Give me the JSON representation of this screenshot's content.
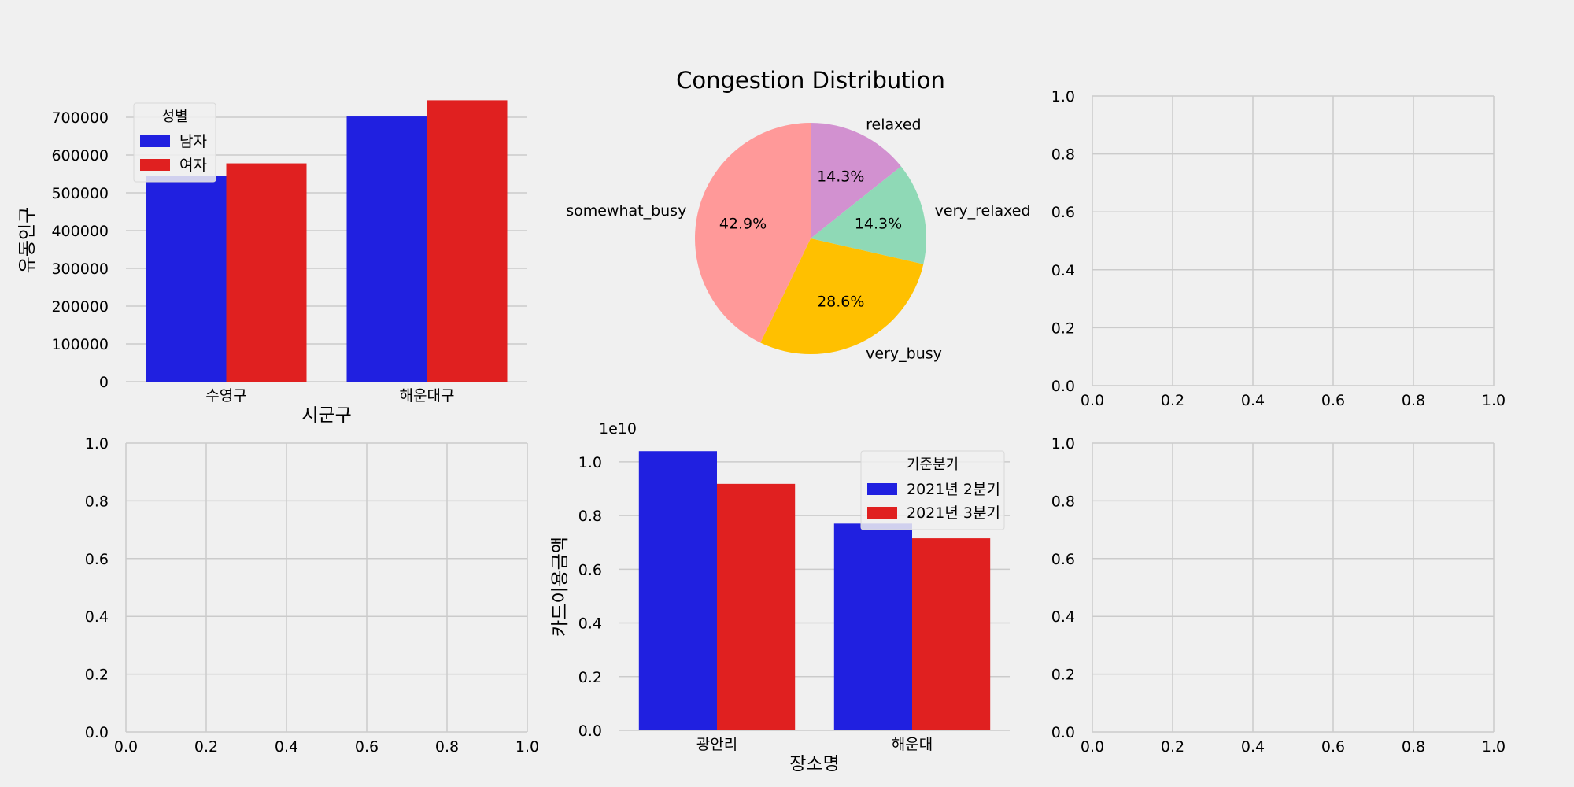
{
  "chart_data": [
    {
      "id": "gender-population",
      "type": "bar",
      "categories": [
        "수영구",
        "해운대구"
      ],
      "series": [
        {
          "name": "남자",
          "values": [
            545000,
            702000
          ],
          "color": "#2020e0"
        },
        {
          "name": "여자",
          "values": [
            578000,
            745000
          ],
          "color": "#e02020"
        }
      ],
      "xlabel": "시군구",
      "ylabel": "유동인구",
      "legend_title": "성별",
      "legend_position": "top-left",
      "ylim": [
        0,
        750000
      ],
      "yticks": [
        "0",
        "100000",
        "200000",
        "300000",
        "400000",
        "500000",
        "600000",
        "700000"
      ],
      "grid": true
    },
    {
      "id": "congestion-pie",
      "type": "pie",
      "title": "Congestion Distribution",
      "slices": [
        {
          "label": "relaxed",
          "value": 14.3,
          "pct": "14.3%",
          "color": "#d291d0"
        },
        {
          "label": "very_relaxed",
          "value": 14.3,
          "pct": "14.3%",
          "color": "#8fd9b6"
        },
        {
          "label": "very_busy",
          "value": 28.6,
          "pct": "28.6%",
          "color": "#ffc000"
        },
        {
          "label": "somewhat_busy",
          "value": 42.9,
          "pct": "42.9%",
          "color": "#ff9999"
        }
      ]
    },
    {
      "id": "empty-top-right",
      "type": "scatter",
      "xlim": [
        0,
        1
      ],
      "ylim": [
        0,
        1
      ],
      "xticks": [
        "0.0",
        "0.2",
        "0.4",
        "0.6",
        "0.8",
        "1.0"
      ],
      "yticks": [
        "0.0",
        "0.2",
        "0.4",
        "0.6",
        "0.8",
        "1.0"
      ],
      "grid": true
    },
    {
      "id": "empty-bottom-left",
      "type": "scatter",
      "xlim": [
        0,
        1
      ],
      "ylim": [
        0,
        1
      ],
      "xticks": [
        "0.0",
        "0.2",
        "0.4",
        "0.6",
        "0.8",
        "1.0"
      ],
      "yticks": [
        "0.0",
        "0.2",
        "0.4",
        "0.6",
        "0.8",
        "1.0"
      ],
      "grid": true
    },
    {
      "id": "card-spending",
      "type": "bar",
      "categories": [
        "광안리",
        "해운대"
      ],
      "series": [
        {
          "name": "2021년 2분기",
          "values": [
            1.04,
            0.77
          ],
          "color": "#2020e0"
        },
        {
          "name": "2021년 3분기",
          "values": [
            0.918,
            0.715
          ],
          "color": "#e02020"
        }
      ],
      "xlabel": "장소명",
      "ylabel": "카드이용금액",
      "legend_title": "기준분기",
      "legend_position": "top-right",
      "ylim": [
        0,
        1.07
      ],
      "yticks": [
        "0.0",
        "0.2",
        "0.4",
        "0.6",
        "0.8",
        "1.0"
      ],
      "offset_text": "1e10",
      "grid": true
    },
    {
      "id": "empty-bottom-right",
      "type": "scatter",
      "xlim": [
        0,
        1
      ],
      "ylim": [
        0,
        1
      ],
      "xticks": [
        "0.0",
        "0.2",
        "0.4",
        "0.6",
        "0.8",
        "1.0"
      ],
      "yticks": [
        "0.0",
        "0.2",
        "0.4",
        "0.6",
        "0.8",
        "1.0"
      ],
      "grid": true
    }
  ]
}
